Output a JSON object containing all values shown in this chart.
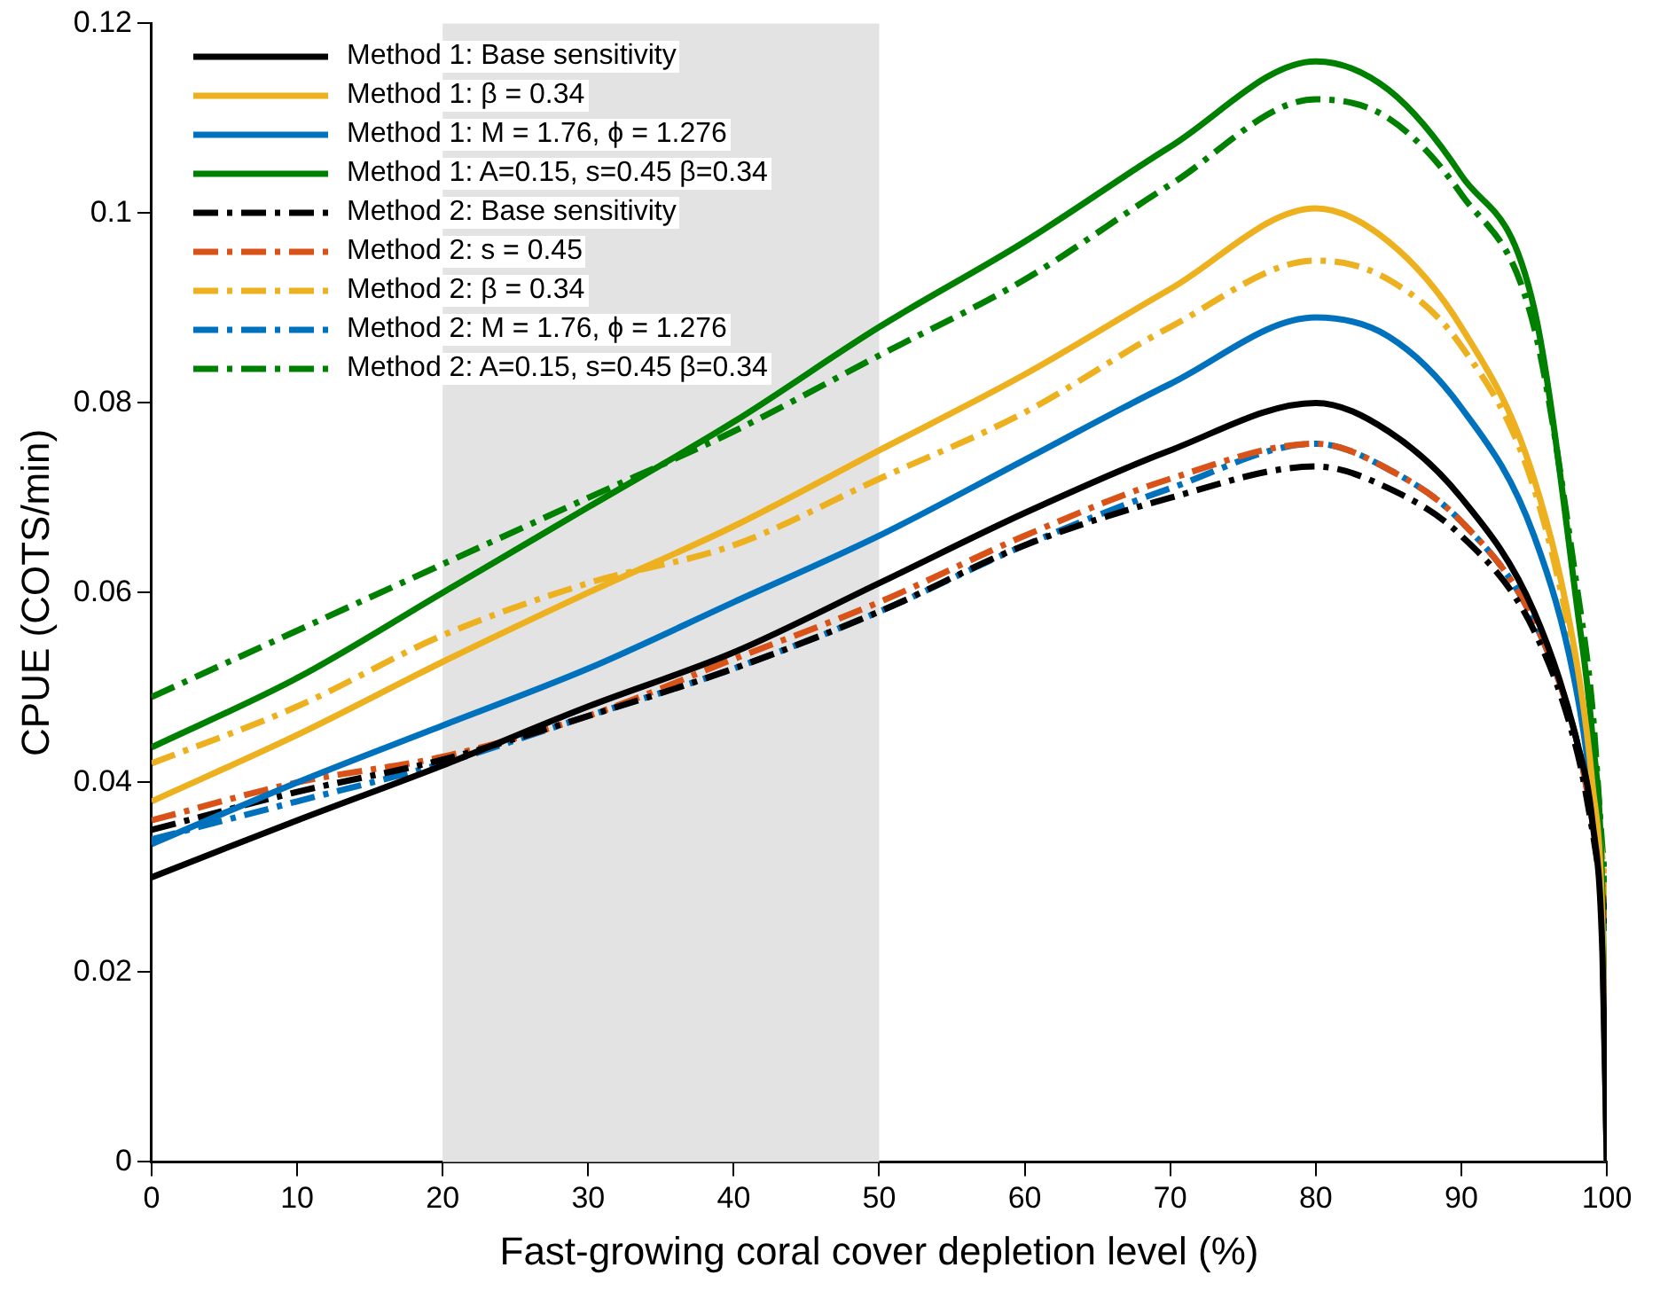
{
  "chart_data": {
    "type": "line",
    "xlabel": "Fast-growing coral cover depletion level (%)",
    "ylabel": "CPUE (COTS/min)",
    "x": [
      0,
      10,
      20,
      30,
      40,
      50,
      60,
      70,
      80,
      85,
      90,
      95,
      98,
      99,
      99.7,
      100
    ],
    "xlim": [
      0,
      100
    ],
    "xticks": [
      0,
      10,
      20,
      30,
      40,
      50,
      60,
      70,
      80,
      90,
      100
    ],
    "ylim": [
      0,
      0.12
    ],
    "yticks": [
      0,
      0.02,
      0.04,
      0.06,
      0.08,
      0.1,
      0.12
    ],
    "grid": false,
    "legend": "top left",
    "marker": "none",
    "bands": [
      {
        "axis": "x",
        "from": 20,
        "to": 50,
        "color": "#e3e3e3"
      }
    ],
    "series": [
      {
        "name": "Method 1: Base sensitivity",
        "color": "#000000",
        "line_style": "solid",
        "values": [
          0.03,
          0.036,
          0.0418,
          0.048,
          0.0537,
          0.061,
          0.0684,
          0.075,
          0.08,
          0.077,
          0.07,
          0.058,
          0.044,
          0.036,
          0.022,
          0
        ]
      },
      {
        "name": "Method 1: β = 0.34",
        "color": "#edb120",
        "line_style": "solid",
        "values": [
          0.038,
          0.045,
          0.0527,
          0.06,
          0.067,
          0.075,
          0.083,
          0.092,
          0.1005,
          0.097,
          0.088,
          0.072,
          0.052,
          0.04,
          0.025,
          0
        ]
      },
      {
        "name": "Method 1: M = 1.76, ϕ = 1.276",
        "color": "#0072bd",
        "line_style": "solid",
        "values": [
          0.0335,
          0.04,
          0.046,
          0.052,
          0.059,
          0.066,
          0.074,
          0.082,
          0.089,
          0.087,
          0.0795,
          0.066,
          0.049,
          0.038,
          0.024,
          0
        ]
      },
      {
        "name": "Method 1: A=0.15, s=0.45 β=0.34",
        "color": "#008000",
        "line_style": "solid",
        "values": [
          0.0437,
          0.051,
          0.06,
          0.069,
          0.078,
          0.088,
          0.097,
          0.107,
          0.116,
          0.113,
          0.104,
          0.09,
          0.058,
          0.045,
          0.028,
          0
        ]
      },
      {
        "name": "Method 2: Base sensitivity",
        "color": "#000000",
        "line_style": "dashed",
        "values": [
          0.035,
          0.039,
          0.0424,
          0.047,
          0.052,
          0.058,
          0.065,
          0.07,
          0.0733,
          0.071,
          0.066,
          0.056,
          0.043,
          0.035,
          0.028,
          0.025
        ]
      },
      {
        "name": "Method 2: s = 0.45",
        "color": "#d95319",
        "line_style": "dashed",
        "values": [
          0.036,
          0.04,
          0.0427,
          0.047,
          0.053,
          0.059,
          0.066,
          0.072,
          0.0757,
          0.073,
          0.0675,
          0.057,
          0.044,
          0.036,
          0.029,
          0.025
        ]
      },
      {
        "name": "Method 2: β = 0.34",
        "color": "#edb120",
        "line_style": "dashed",
        "values": [
          0.042,
          0.048,
          0.0555,
          0.061,
          0.065,
          0.072,
          0.079,
          0.088,
          0.095,
          0.093,
          0.086,
          0.071,
          0.051,
          0.04,
          0.032,
          0.027
        ]
      },
      {
        "name": "Method 2: M = 1.76, ϕ = 1.276",
        "color": "#0072bd",
        "line_style": "dashed",
        "values": [
          0.034,
          0.038,
          0.042,
          0.047,
          0.052,
          0.058,
          0.065,
          0.071,
          0.0757,
          0.073,
          0.0675,
          0.057,
          0.044,
          0.036,
          0.029,
          0.024
        ]
      },
      {
        "name": "Method 2: A=0.15, s=0.45 β=0.34",
        "color": "#008000",
        "line_style": "dashed",
        "values": [
          0.049,
          0.056,
          0.063,
          0.07,
          0.077,
          0.085,
          0.093,
          0.103,
          0.112,
          0.11,
          0.102,
          0.088,
          0.06,
          0.048,
          0.033,
          0.028
        ]
      }
    ]
  }
}
